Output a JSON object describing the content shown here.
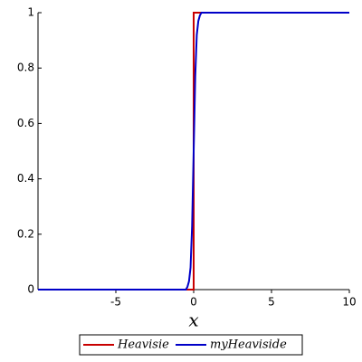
{
  "chart_data": {
    "type": "line",
    "xlabel": "x",
    "series": [
      {
        "name": "Heavisie",
        "color": "#c80000",
        "x": [
          -10,
          0,
          0,
          10
        ],
        "values": [
          0,
          0,
          1,
          1
        ]
      },
      {
        "name": "myHeaviside",
        "color": "#0000c8",
        "x": [
          -10,
          -0.5,
          -0.4,
          -0.3,
          -0.2,
          -0.1,
          0,
          0.1,
          0.2,
          0.3,
          0.4,
          0.5,
          10
        ],
        "values": [
          0,
          0,
          0.01,
          0.03,
          0.08,
          0.23,
          0.5,
          0.77,
          0.92,
          0.97,
          0.99,
          1,
          1
        ]
      }
    ],
    "xlim": [
      -10,
      10
    ],
    "ylim": [
      0,
      1
    ],
    "xticks": [
      -5,
      0,
      5,
      10
    ],
    "yticks": [
      0,
      0.2,
      0.4,
      0.6,
      0.8,
      1
    ],
    "legend": "bottom"
  }
}
